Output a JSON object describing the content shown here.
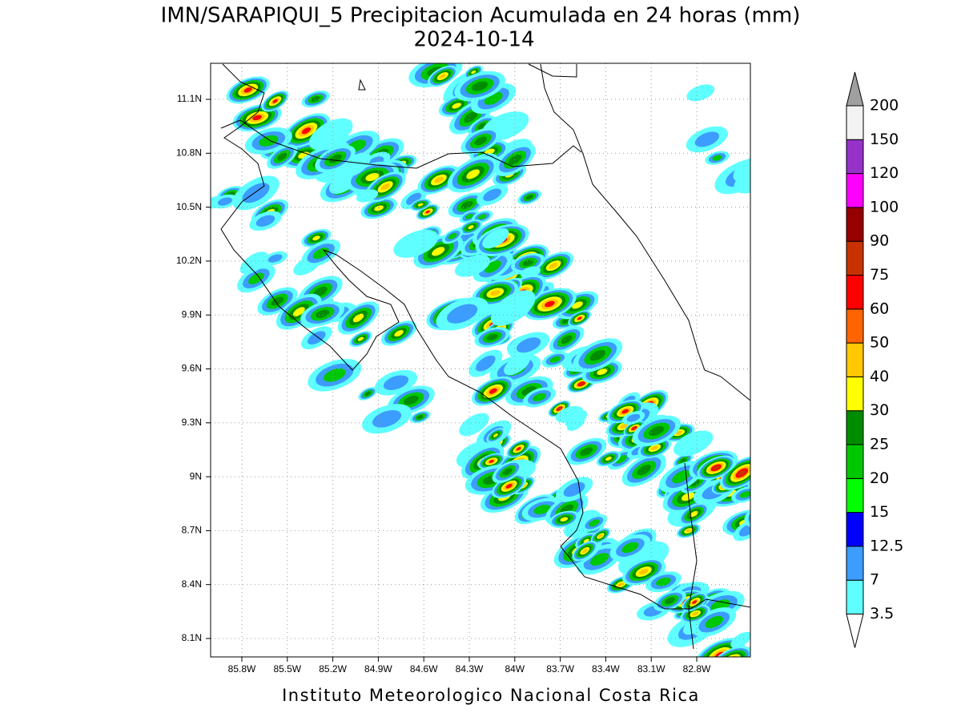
{
  "title": "IMN/SARAPIQUI_5 Precipitacion Acumulada en 24 horas (mm)",
  "date": "2024-10-14",
  "lon_ticks": [
    "85.8W",
    "85.5W",
    "85.2W",
    "84.9W",
    "84.6W",
    "84.3W",
    "84W",
    "83.7W",
    "83.4W",
    "83.1W",
    "82.8W"
  ],
  "lat_ticks": [
    "11.1N",
    "10.8N",
    "10.5N",
    "10.2N",
    "9.9N",
    "9.6N",
    "9.3N",
    "9N",
    "8.7N",
    "8.4N",
    "8.1N"
  ],
  "colorbar": {
    "levels": [
      3.5,
      7,
      12.5,
      15,
      20,
      25,
      30,
      40,
      50,
      60,
      75,
      90,
      100,
      120,
      150,
      200
    ],
    "colors": [
      "#5fffff",
      "#3c9cff",
      "#0000ff",
      "#00ff00",
      "#00c800",
      "#008c00",
      "#ffff00",
      "#ffc800",
      "#ff6400",
      "#ff0000",
      "#c83200",
      "#960000",
      "#ff00ff",
      "#9632c8",
      "#f2f2f2"
    ],
    "under_color": "#ffffff",
    "over_color": "#a0a0a0"
  },
  "footer": "Instituto Meteorologico Nacional Costa Rica"
}
